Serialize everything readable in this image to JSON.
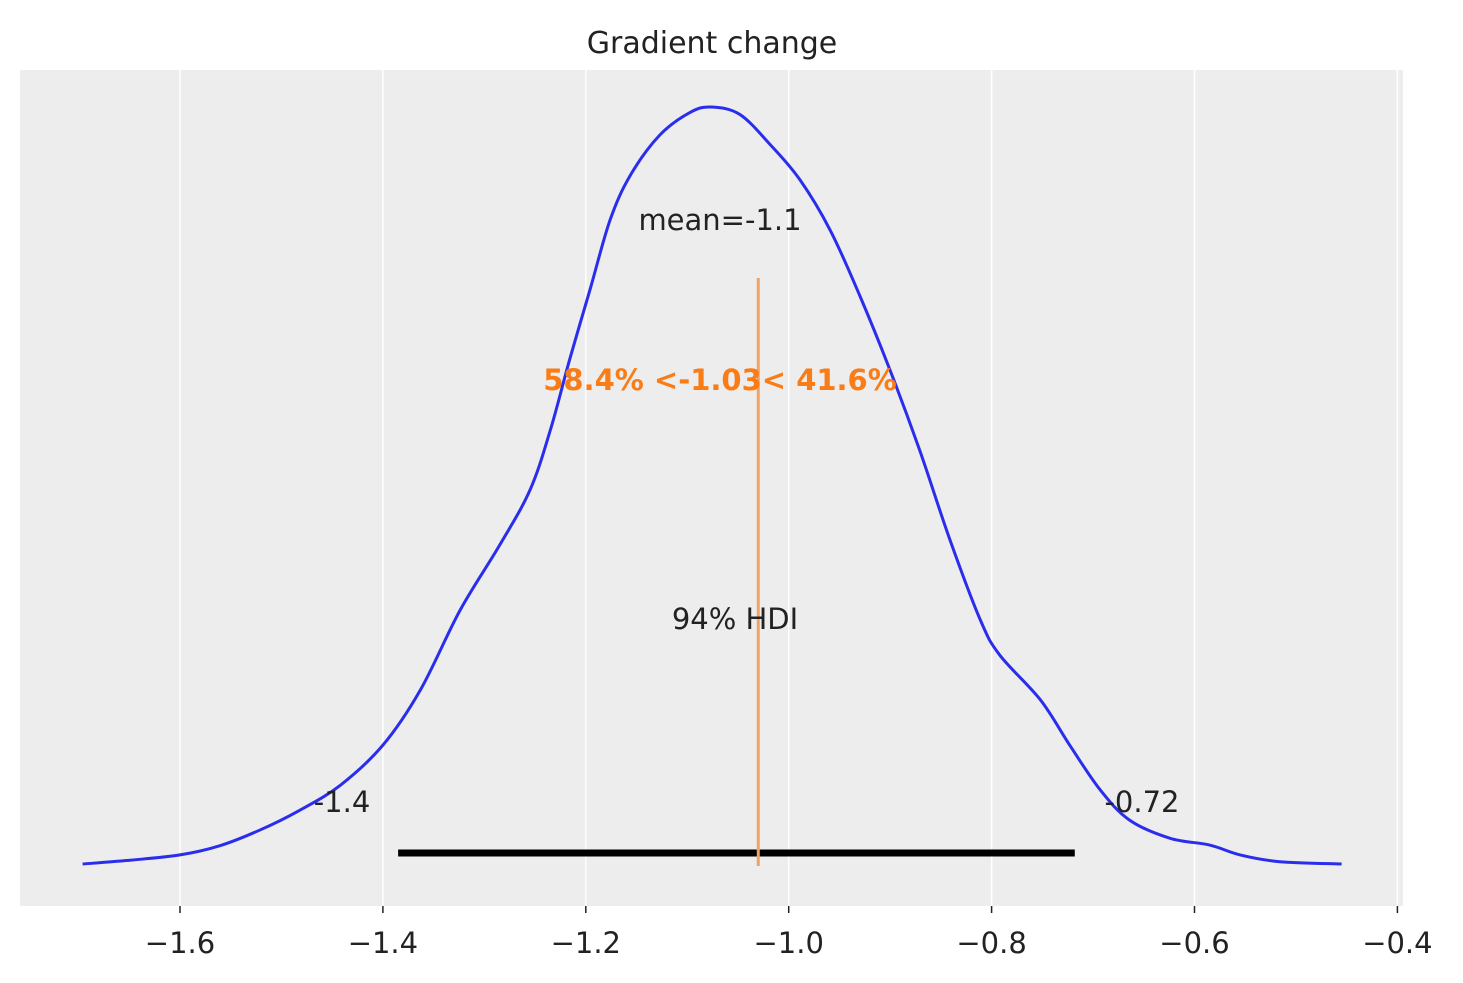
{
  "chart_data": {
    "type": "line",
    "title": "Gradient change",
    "xlabel": "",
    "ylabel": "",
    "xlim": [
      -1.76,
      -0.39
    ],
    "x_ticks": [
      -1.6,
      -1.4,
      -1.2,
      -1.0,
      -0.8,
      -0.6,
      -0.4
    ],
    "x_tick_labels": [
      "−1.6",
      "−1.4",
      "−1.2",
      "−1.0",
      "−0.8",
      "−0.6",
      "−0.4"
    ],
    "grid": "vertical",
    "density": {
      "x": [
        -1.696,
        -1.649,
        -1.6,
        -1.561,
        -1.521,
        -1.482,
        -1.442,
        -1.4,
        -1.363,
        -1.324,
        -1.285,
        -1.255,
        -1.235,
        -1.216,
        -1.196,
        -1.176,
        -1.156,
        -1.127,
        -1.097,
        -1.076,
        -1.048,
        -1.018,
        -0.989,
        -0.959,
        -0.93,
        -0.9,
        -0.871,
        -0.841,
        -0.811,
        -0.792,
        -0.752,
        -0.723,
        -0.693,
        -0.664,
        -0.624,
        -0.585,
        -0.555,
        -0.516,
        -0.455
      ],
      "y_relative": [
        0,
        0.005,
        0.012,
        0.024,
        0.045,
        0.071,
        0.104,
        0.157,
        0.23,
        0.335,
        0.421,
        0.494,
        0.573,
        0.666,
        0.758,
        0.851,
        0.91,
        0.963,
        0.993,
        1,
        0.99,
        0.95,
        0.904,
        0.837,
        0.751,
        0.652,
        0.547,
        0.428,
        0.322,
        0.276,
        0.217,
        0.157,
        0.098,
        0.058,
        0.034,
        0.025,
        0.012,
        0.003,
        0
      ]
    },
    "mean_label": "mean=-1.1",
    "reference": {
      "value": -1.03,
      "label": "58.4% <-1.03< 41.6%"
    },
    "hdi": {
      "low": -1.385,
      "high": -0.718,
      "label": "94% HDI",
      "low_label": "-1.4",
      "high_label": "-0.72"
    },
    "colors": {
      "density": "#2a2eec",
      "reference_text": "#fa7c17",
      "reference_line": "#f4a261",
      "hdi": "#000000",
      "background": "#ededed",
      "grid": "#ffffff",
      "text": "#222222"
    }
  }
}
